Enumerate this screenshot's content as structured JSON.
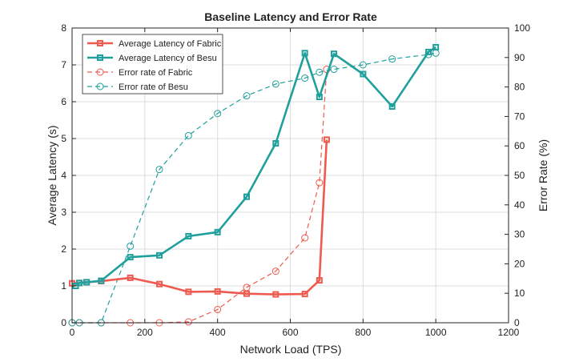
{
  "chart_data": {
    "type": "line",
    "title": "Baseline Latency and Error Rate",
    "xlabel": "Network Load (TPS)",
    "ylabel_left": "Average Latency (s)",
    "ylabel_right": "Error Rate (%)",
    "xlim": [
      0,
      1200
    ],
    "ylim_left": [
      0,
      8
    ],
    "ylim_right": [
      0,
      100
    ],
    "x_ticks": [
      "0",
      "200",
      "400",
      "600",
      "800",
      "1000",
      "1200"
    ],
    "y_left_ticks": [
      "0",
      "1",
      "2",
      "3",
      "4",
      "5",
      "6",
      "7",
      "8"
    ],
    "y_right_ticks": [
      "0",
      "10",
      "20",
      "30",
      "40",
      "50",
      "60",
      "70",
      "80",
      "90",
      "100"
    ],
    "grid": true,
    "legend_position": "top-left",
    "series": [
      {
        "name": "Average Latency of Fabric",
        "axis": "left",
        "style": "solid",
        "marker": "square",
        "color": "#ee5a4f",
        "x": [
          0,
          20,
          40,
          80,
          160,
          240,
          320,
          400,
          480,
          560,
          640,
          680,
          700
        ],
        "y": [
          1.07,
          1.08,
          1.1,
          1.13,
          1.22,
          1.05,
          0.84,
          0.85,
          0.79,
          0.77,
          0.78,
          1.15,
          4.97
        ]
      },
      {
        "name": "Average Latency of Besu",
        "axis": "left",
        "style": "solid",
        "marker": "square",
        "color": "#1fa09c",
        "x": [
          10,
          20,
          40,
          80,
          160,
          240,
          320,
          400,
          480,
          560,
          640,
          680,
          720,
          800,
          880,
          980,
          1000
        ],
        "y": [
          1.0,
          1.08,
          1.1,
          1.14,
          1.78,
          1.83,
          2.35,
          2.46,
          3.42,
          4.87,
          7.32,
          6.13,
          7.3,
          6.75,
          5.87,
          7.35,
          7.48
        ]
      },
      {
        "name": "Error rate of Fabric",
        "axis": "right",
        "style": "dashed",
        "marker": "circle",
        "color": "#ee5a4f",
        "x": [
          0,
          20,
          80,
          160,
          240,
          320,
          400,
          480,
          560,
          640,
          680,
          700
        ],
        "y": [
          0,
          0,
          0,
          0,
          0,
          0.3,
          4.5,
          12,
          17.5,
          28.8,
          47.5,
          86
        ]
      },
      {
        "name": "Error rate of Besu",
        "axis": "right",
        "style": "dashed",
        "marker": "circle",
        "color": "#1fa09c",
        "x": [
          0,
          20,
          80,
          160,
          240,
          320,
          400,
          480,
          560,
          640,
          680,
          720,
          800,
          880,
          980,
          1000
        ],
        "y": [
          0,
          0,
          0,
          26,
          52,
          63.5,
          71,
          77,
          81,
          83,
          85,
          86,
          87.5,
          89.5,
          91,
          91.5
        ]
      }
    ]
  }
}
